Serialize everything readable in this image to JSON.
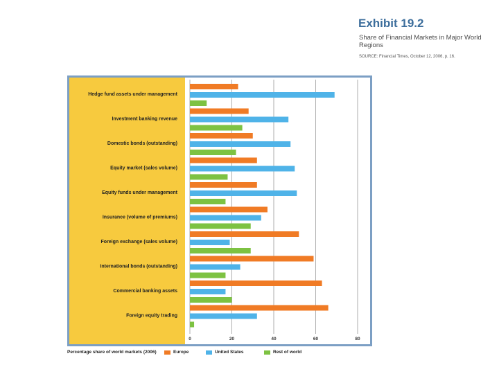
{
  "header": {
    "title": "Exhibit 19.2",
    "subtitle": "Share of Financial Markets in Major World Regions",
    "source": "SOURCE: Financial Times, October 12, 2006, p. 16."
  },
  "colors": {
    "panel": "#f7ca3e",
    "border": "#7c9fc4",
    "Europe": "#f07b25",
    "United States": "#4fb3e8",
    "Rest of world": "#7dc242",
    "grid": "#9a9a9a"
  },
  "chart_data": {
    "type": "bar",
    "orientation": "horizontal",
    "title": "Share of Financial Markets in Major World Regions",
    "xlabel": "Percentage share of world markets (2006)",
    "xlim": [
      0,
      80
    ],
    "xticks": [
      "0",
      "20",
      "40",
      "60",
      "80"
    ],
    "categories": [
      "Hedge fund assets under management",
      "Investment banking revenue",
      "Domestic bonds (outstanding)",
      "Equity market (sales volume)",
      "Equity funds under management",
      "Insurance (volume of premiums)",
      "Foreign exchange (sales volume)",
      "International bonds (outstanding)",
      "Commercial banking assets",
      "Foreign equity trading"
    ],
    "series": [
      {
        "name": "Europe",
        "values": [
          23,
          28,
          30,
          32,
          32,
          37,
          52,
          59,
          63,
          66
        ]
      },
      {
        "name": "United States",
        "values": [
          69,
          47,
          48,
          50,
          51,
          34,
          19,
          24,
          17,
          32
        ]
      },
      {
        "name": "Rest of world",
        "values": [
          8,
          25,
          22,
          18,
          17,
          29,
          29,
          17,
          20,
          2
        ]
      }
    ],
    "grid": true,
    "legend_position": "bottom"
  }
}
